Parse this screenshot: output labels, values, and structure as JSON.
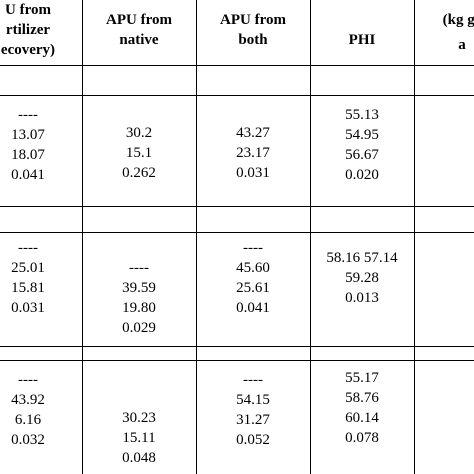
{
  "header": {
    "columns": [
      {
        "lines": [
          "U from",
          "rtilizer",
          "ecovery)"
        ]
      },
      {
        "lines": [
          "APU from",
          "native"
        ]
      },
      {
        "lines": [
          "APU from",
          "both"
        ]
      },
      {
        "lines": [
          "PHI"
        ]
      },
      {
        "lines": [
          "(kg gr",
          "a"
        ]
      }
    ]
  },
  "blocks": [
    {
      "cells": [
        {
          "lines": [
            "----",
            "13.07",
            "18.07",
            "0.041"
          ]
        },
        {
          "lines": [
            "30.2",
            "15.1",
            "0.262"
          ]
        },
        {
          "lines": [
            "43.27",
            "23.17",
            "0.031"
          ]
        },
        {
          "lines": [
            "55.13",
            "54.95",
            "56.67",
            "0.020"
          ]
        }
      ]
    },
    {
      "cells": [
        {
          "lines": [
            "----",
            "25.01",
            "15.81",
            "0.031"
          ]
        },
        {
          "lines": [
            "----",
            "39.59",
            "19.80",
            "0.029"
          ]
        },
        {
          "lines": [
            "----",
            "45.60",
            "25.61",
            "0.041"
          ]
        },
        {
          "lines": [
            "58.16 57.14",
            "59.28",
            "0.013"
          ]
        }
      ]
    },
    {
      "cells": [
        {
          "lines": [
            "----",
            "43.92",
            "6.16",
            "0.032"
          ]
        },
        {
          "lines": [
            "30.23",
            "15.11",
            "0.048"
          ]
        },
        {
          "lines": [
            "----",
            "54.15",
            "31.27",
            "0.052"
          ]
        },
        {
          "lines": [
            "55.17",
            "58.76",
            "60.14",
            "0.078"
          ]
        }
      ]
    }
  ]
}
